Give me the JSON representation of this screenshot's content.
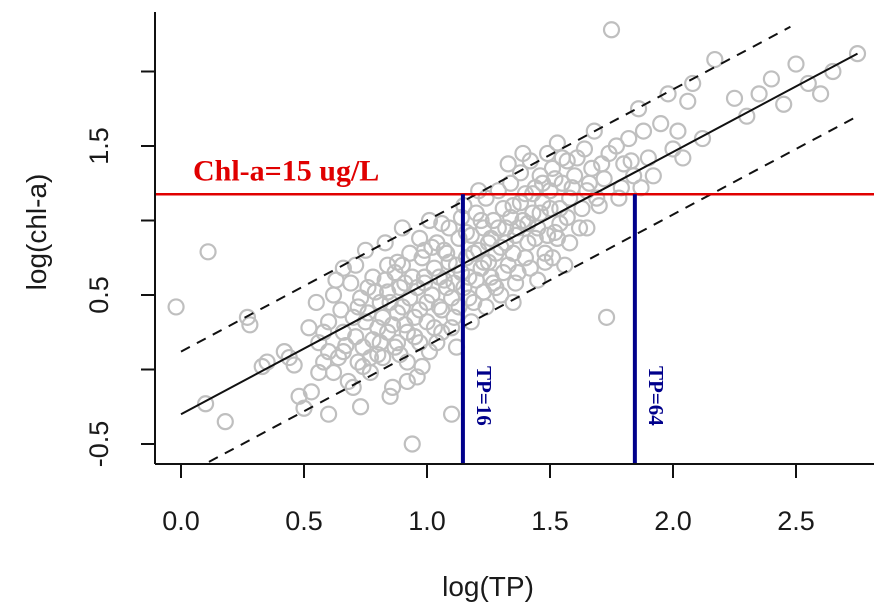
{
  "chart_data": {
    "type": "scatter",
    "title": "",
    "xlabel": "log(TP)",
    "ylabel": "log(chl-a)",
    "xlim": [
      -0.1,
      2.8
    ],
    "ylim": [
      -0.62,
      2.3
    ],
    "xticks": [
      "0.0",
      "0.5",
      "1.0",
      "1.5",
      "2.0",
      "2.5"
    ],
    "xtick_values": [
      0.0,
      0.5,
      1.0,
      1.5,
      2.0,
      2.5
    ],
    "yticks": [
      "-0.5",
      "0.5",
      "1.5"
    ],
    "ytick_values": [
      -0.5,
      0.5,
      1.5
    ],
    "yticks_minor": [
      0.0,
      1.0,
      2.0
    ],
    "grid": false,
    "points_color": "#bfbfbf",
    "regression": {
      "intercept": -0.3,
      "slope": 0.88
    },
    "prediction_band_offset": 0.42,
    "line_color": "#111111",
    "hline": {
      "y": 1.176,
      "label": "Chl-a=15 ug/L",
      "color": "#e00000"
    },
    "vlines": [
      {
        "x": 1.146,
        "label": "TP=16",
        "color": "#00008b"
      },
      {
        "x": 1.845,
        "label": "TP=64",
        "color": "#00008b"
      }
    ],
    "points": [
      [
        -0.02,
        0.42
      ],
      [
        0.1,
        -0.23
      ],
      [
        0.11,
        0.79
      ],
      [
        0.18,
        -0.35
      ],
      [
        0.27,
        0.35
      ],
      [
        0.28,
        0.3
      ],
      [
        0.33,
        0.02
      ],
      [
        0.44,
        0.08
      ],
      [
        0.46,
        0.03
      ],
      [
        0.5,
        -0.26
      ],
      [
        0.53,
        -0.15
      ],
      [
        0.56,
        0.18
      ],
      [
        0.58,
        0.25
      ],
      [
        0.6,
        0.12
      ],
      [
        0.62,
        0.5
      ],
      [
        0.64,
        0.08
      ],
      [
        0.66,
        0.25
      ],
      [
        0.68,
        -0.08
      ],
      [
        0.7,
        0.35
      ],
      [
        0.72,
        0.42
      ],
      [
        0.72,
        0.05
      ],
      [
        0.74,
        0.15
      ],
      [
        0.75,
        0.32
      ],
      [
        0.77,
        -0.02
      ],
      [
        0.78,
        0.2
      ],
      [
        0.79,
        0.52
      ],
      [
        0.8,
        0.1
      ],
      [
        0.82,
        0.35
      ],
      [
        0.83,
        0.6
      ],
      [
        0.84,
        0.25
      ],
      [
        0.85,
        0.45
      ],
      [
        0.86,
        -0.12
      ],
      [
        0.87,
        0.15
      ],
      [
        0.88,
        0.38
      ],
      [
        0.89,
        0.55
      ],
      [
        0.9,
        0.7
      ],
      [
        0.91,
        0.3
      ],
      [
        0.92,
        0.05
      ],
      [
        0.93,
        0.48
      ],
      [
        0.94,
        0.62
      ],
      [
        0.95,
        0.22
      ],
      [
        0.96,
        -0.05
      ],
      [
        0.97,
        0.4
      ],
      [
        0.98,
        0.75
      ],
      [
        0.99,
        0.58
      ],
      [
        1.0,
        0.32
      ],
      [
        1.01,
        0.12
      ],
      [
        1.02,
        0.5
      ],
      [
        1.03,
        0.68
      ],
      [
        1.04,
        0.85
      ],
      [
        1.05,
        0.42
      ],
      [
        1.06,
        0.25
      ],
      [
        1.07,
        0.6
      ],
      [
        1.08,
        0.78
      ],
      [
        1.09,
        0.95
      ],
      [
        1.1,
        0.48
      ],
      [
        1.11,
        0.35
      ],
      [
        1.12,
        0.7
      ],
      [
        1.13,
        0.88
      ],
      [
        1.14,
        1.02
      ],
      [
        1.15,
        0.55
      ],
      [
        1.16,
        0.75
      ],
      [
        1.17,
        0.62
      ],
      [
        1.18,
        0.9
      ],
      [
        1.19,
        0.45
      ],
      [
        1.2,
        1.05
      ],
      [
        1.21,
        0.8
      ],
      [
        1.22,
        0.68
      ],
      [
        1.23,
        0.95
      ],
      [
        1.24,
        1.15
      ],
      [
        1.25,
        0.72
      ],
      [
        1.26,
        0.88
      ],
      [
        1.27,
        1.0
      ],
      [
        1.28,
        0.55
      ],
      [
        1.29,
        1.2
      ],
      [
        1.3,
        0.82
      ],
      [
        1.31,
        1.08
      ],
      [
        1.32,
        0.95
      ],
      [
        1.33,
        0.7
      ],
      [
        1.34,
        1.25
      ],
      [
        1.35,
        1.1
      ],
      [
        1.36,
        0.9
      ],
      [
        1.37,
        0.65
      ],
      [
        1.38,
        1.32
      ],
      [
        1.39,
        1.0
      ],
      [
        1.4,
        1.18
      ],
      [
        1.41,
        0.85
      ],
      [
        1.42,
        1.4
      ],
      [
        1.43,
        1.05
      ],
      [
        1.44,
        1.22
      ],
      [
        1.45,
        0.95
      ],
      [
        1.46,
        1.3
      ],
      [
        1.47,
        1.12
      ],
      [
        1.48,
        0.78
      ],
      [
        1.49,
        1.45
      ],
      [
        1.5,
        1.2
      ],
      [
        1.51,
        1.35
      ],
      [
        1.52,
        0.92
      ],
      [
        1.53,
        1.52
      ],
      [
        1.54,
        1.08
      ],
      [
        1.55,
        1.25
      ],
      [
        1.56,
        0.7
      ],
      [
        1.57,
        1.4
      ],
      [
        1.58,
        1.15
      ],
      [
        1.6,
        1.3
      ],
      [
        1.62,
        0.95
      ],
      [
        1.64,
        1.48
      ],
      [
        1.65,
        1.2
      ],
      [
        1.67,
        1.35
      ],
      [
        1.68,
        1.6
      ],
      [
        1.7,
        1.1
      ],
      [
        1.72,
        1.28
      ],
      [
        1.74,
        1.45
      ],
      [
        1.75,
        2.28
      ],
      [
        1.78,
        1.15
      ],
      [
        1.8,
        1.38
      ],
      [
        1.82,
        1.55
      ],
      [
        1.84,
        1.3
      ],
      [
        1.86,
        1.75
      ],
      [
        1.88,
        1.6
      ],
      [
        1.9,
        1.42
      ],
      [
        1.92,
        1.3
      ],
      [
        1.95,
        1.65
      ],
      [
        1.98,
        1.85
      ],
      [
        2.0,
        1.48
      ],
      [
        2.02,
        1.6
      ],
      [
        2.04,
        1.42
      ],
      [
        2.06,
        1.8
      ],
      [
        2.08,
        1.92
      ],
      [
        2.12,
        1.55
      ],
      [
        2.17,
        2.08
      ],
      [
        2.25,
        1.82
      ],
      [
        2.3,
        1.7
      ],
      [
        2.35,
        1.85
      ],
      [
        2.4,
        1.95
      ],
      [
        2.45,
        1.78
      ],
      [
        2.5,
        2.05
      ],
      [
        2.55,
        1.92
      ],
      [
        2.6,
        1.85
      ],
      [
        2.65,
        2.0
      ],
      [
        2.75,
        2.12
      ],
      [
        0.52,
        0.28
      ],
      [
        0.58,
        0.05
      ],
      [
        0.6,
        0.32
      ],
      [
        0.65,
        0.4
      ],
      [
        0.67,
        0.16
      ],
      [
        0.69,
        0.58
      ],
      [
        0.71,
        0.22
      ],
      [
        0.73,
        0.48
      ],
      [
        0.76,
        0.38
      ],
      [
        0.78,
        0.62
      ],
      [
        0.8,
        0.28
      ],
      [
        0.81,
        0.45
      ],
      [
        0.82,
        0.08
      ],
      [
        0.84,
        0.52
      ],
      [
        0.86,
        0.3
      ],
      [
        0.87,
        0.65
      ],
      [
        0.88,
        0.18
      ],
      [
        0.9,
        0.42
      ],
      [
        0.91,
        0.58
      ],
      [
        0.92,
        0.25
      ],
      [
        0.93,
        0.78
      ],
      [
        0.95,
        0.35
      ],
      [
        0.96,
        0.55
      ],
      [
        0.97,
        0.18
      ],
      [
        0.99,
        0.62
      ],
      [
        1.0,
        0.45
      ],
      [
        1.02,
        0.82
      ],
      [
        1.03,
        0.28
      ],
      [
        1.05,
        0.62
      ],
      [
        1.06,
        0.4
      ],
      [
        1.08,
        0.55
      ],
      [
        1.09,
        0.72
      ],
      [
        1.1,
        0.28
      ],
      [
        1.11,
        0.58
      ],
      [
        1.13,
        0.42
      ],
      [
        1.14,
        0.65
      ],
      [
        1.16,
        0.92
      ],
      [
        1.17,
        0.48
      ],
      [
        1.19,
        0.78
      ],
      [
        1.2,
        0.6
      ],
      [
        1.22,
        1.0
      ],
      [
        1.23,
        0.52
      ],
      [
        1.25,
        0.85
      ],
      [
        1.26,
        0.62
      ],
      [
        1.28,
        0.78
      ],
      [
        1.29,
        0.95
      ],
      [
        1.31,
        0.65
      ],
      [
        1.32,
        0.85
      ],
      [
        1.34,
        1.02
      ],
      [
        1.35,
        0.78
      ],
      [
        1.37,
        0.95
      ],
      [
        1.38,
        1.12
      ],
      [
        1.4,
        0.75
      ],
      [
        1.41,
        0.98
      ],
      [
        1.43,
        1.18
      ],
      [
        1.44,
        0.88
      ],
      [
        1.46,
        1.05
      ],
      [
        1.47,
        1.25
      ],
      [
        1.49,
        0.9
      ],
      [
        1.5,
        1.08
      ],
      [
        1.52,
        1.28
      ],
      [
        1.54,
        0.98
      ],
      [
        1.55,
        1.42
      ],
      [
        1.57,
        1.02
      ],
      [
        1.59,
        1.22
      ],
      [
        1.61,
        1.42
      ],
      [
        1.63,
        1.08
      ],
      [
        1.66,
        1.25
      ],
      [
        1.69,
        1.15
      ],
      [
        1.71,
        1.38
      ],
      [
        1.73,
        0.35
      ],
      [
        1.77,
        1.5
      ],
      [
        1.79,
        1.22
      ],
      [
        1.83,
        1.4
      ],
      [
        1.87,
        1.22
      ],
      [
        0.48,
        -0.18
      ],
      [
        0.62,
        -0.02
      ],
      [
        0.7,
        -0.12
      ],
      [
        0.77,
        0.08
      ],
      [
        0.85,
        -0.18
      ],
      [
        0.92,
        -0.08
      ],
      [
        0.98,
        0.02
      ],
      [
        1.04,
        0.18
      ],
      [
        0.55,
        0.45
      ],
      [
        0.63,
        0.6
      ],
      [
        0.71,
        0.7
      ],
      [
        0.75,
        0.8
      ],
      [
        0.83,
        0.85
      ],
      [
        0.9,
        0.95
      ],
      [
        0.97,
        0.88
      ],
      [
        1.01,
        1.0
      ],
      [
        0.56,
        -0.02
      ],
      [
        0.66,
        0.12
      ],
      [
        0.74,
        0.02
      ],
      [
        0.81,
        0.18
      ],
      [
        0.89,
        0.1
      ],
      [
        0.95,
        0.22
      ],
      [
        1.12,
        0.15
      ],
      [
        1.18,
        0.32
      ],
      [
        1.24,
        0.42
      ],
      [
        1.3,
        0.5
      ],
      [
        1.36,
        0.58
      ],
      [
        1.42,
        0.68
      ],
      [
        1.48,
        0.72
      ],
      [
        1.53,
        0.88
      ],
      [
        0.94,
        -0.5
      ],
      [
        1.1,
        -0.3
      ],
      [
        0.35,
        0.05
      ],
      [
        0.42,
        0.12
      ],
      [
        0.6,
        -0.3
      ],
      [
        0.73,
        -0.25
      ],
      [
        0.88,
        0.72
      ],
      [
        1.06,
        0.98
      ],
      [
        1.15,
        1.1
      ],
      [
        1.21,
        1.2
      ],
      [
        1.33,
        1.38
      ],
      [
        1.39,
        1.45
      ],
      [
        0.66,
        0.68
      ],
      [
        0.76,
        0.55
      ],
      [
        0.84,
        0.7
      ],
      [
        0.99,
        0.8
      ],
      [
        1.07,
        0.8
      ],
      [
        1.23,
        0.72
      ],
      [
        1.27,
        0.58
      ],
      [
        1.35,
        0.45
      ],
      [
        1.45,
        0.6
      ],
      [
        1.51,
        0.75
      ],
      [
        1.58,
        0.85
      ],
      [
        1.65,
        0.95
      ]
    ]
  }
}
